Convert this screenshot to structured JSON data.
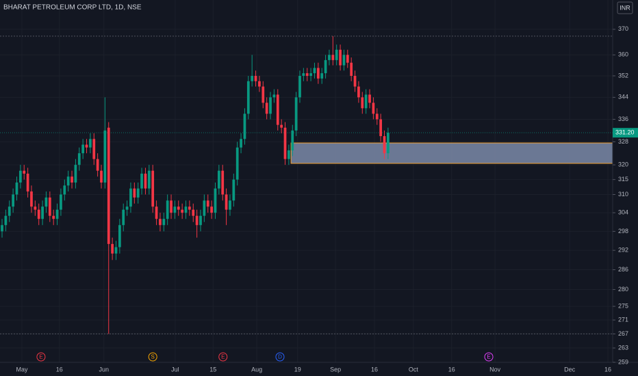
{
  "chart_data": {
    "type": "candlestick",
    "title": "BHARAT PETROLEUM CORP LTD, 1D, NSE",
    "currency": "INR",
    "log_scale": true,
    "grid": true,
    "ylim": [
      257.1,
      381.8
    ],
    "yticks": [
      370,
      360,
      352,
      344,
      336,
      328,
      320,
      315,
      310,
      304,
      298,
      292,
      286,
      280,
      275,
      271,
      267,
      263,
      259
    ],
    "xlim": [
      -0.56,
      166.1
    ],
    "xticks": [
      {
        "value": 5.4,
        "label": "May"
      },
      {
        "value": 15.6,
        "label": "16"
      },
      {
        "value": 27.7,
        "label": "Jun"
      },
      {
        "value": 47.1,
        "label": "Jul"
      },
      {
        "value": 57.4,
        "label": "15"
      },
      {
        "value": 69.3,
        "label": "Aug"
      },
      {
        "value": 80.4,
        "label": "19"
      },
      {
        "value": 90.7,
        "label": "Sep"
      },
      {
        "value": 101.3,
        "label": "16"
      },
      {
        "value": 111.9,
        "label": "Oct"
      },
      {
        "value": 122.3,
        "label": "16"
      },
      {
        "value": 134.1,
        "label": "Nov"
      },
      {
        "value": 154.4,
        "label": "Dec"
      },
      {
        "value": 164.8,
        "label": "16"
      }
    ],
    "up_color": "#089981",
    "down_color": "#f23645",
    "series": [
      {
        "open": [
          298,
          300,
          303,
          306,
          310,
          314,
          318,
          317,
          311,
          306,
          305,
          302,
          306,
          309,
          303,
          302,
          305,
          310,
          313,
          316,
          314,
          320,
          324,
          327,
          326,
          329,
          322,
          318,
          314,
          333,
          294,
          291,
          293,
          300,
          305,
          306,
          312,
          309,
          312,
          317,
          312,
          318,
          306,
          302,
          300,
          302,
          308,
          304,
          306,
          305,
          304,
          306,
          305,
          303,
          300,
          303,
          308,
          306,
          304,
          312,
          318,
          310,
          305,
          308,
          315,
          326,
          329,
          338,
          350,
          352,
          350,
          348,
          342,
          338,
          344,
          345,
          334,
          333,
          322,
          325,
          332,
          344,
          352,
          353,
          352,
          353,
          355,
          351,
          353,
          358,
          360,
          358,
          362,
          356,
          360,
          357,
          352,
          348,
          344,
          340,
          345,
          342,
          338,
          336,
          330,
          324
        ],
        "high": [
          302,
          305,
          308,
          312,
          316,
          320,
          320,
          319,
          313,
          308,
          307,
          308,
          311,
          311,
          305,
          307,
          312,
          315,
          318,
          318,
          322,
          326,
          329,
          329,
          331,
          331,
          324,
          320,
          344,
          335,
          296,
          295,
          302,
          307,
          308,
          314,
          314,
          314,
          319,
          319,
          320,
          320,
          308,
          304,
          304,
          310,
          310,
          308,
          308,
          307,
          308,
          308,
          307,
          305,
          305,
          310,
          310,
          308,
          314,
          320,
          320,
          312,
          310,
          317,
          328,
          331,
          340,
          352,
          360,
          354,
          352,
          350,
          344,
          346,
          347,
          347,
          336,
          335,
          327,
          334,
          346,
          354,
          355,
          355,
          355,
          357,
          357,
          355,
          360,
          362,
          367.3,
          364,
          364,
          362,
          362,
          359,
          354,
          350,
          346,
          347,
          347,
          344,
          340,
          338,
          332,
          333
        ],
        "low": [
          296,
          298,
          301,
          304,
          308,
          312,
          315,
          309,
          304,
          303,
          300,
          300,
          304,
          301,
          300,
          300,
          303,
          308,
          311,
          312,
          312,
          318,
          322,
          324,
          324,
          320,
          316,
          312,
          312,
          267,
          289,
          289,
          291,
          298,
          303,
          304,
          307,
          307,
          310,
          310,
          310,
          304,
          300,
          298,
          298,
          300,
          302,
          302,
          303,
          302,
          302,
          303,
          301,
          296,
          298,
          301,
          304,
          302,
          302,
          310,
          308,
          300,
          303,
          306,
          313,
          324,
          327,
          336,
          348,
          348,
          346,
          340,
          336,
          336,
          342,
          332,
          331,
          320,
          320,
          323,
          330,
          342,
          350,
          350,
          350,
          351,
          349,
          349,
          351,
          356,
          356,
          356,
          354,
          354,
          355,
          350,
          346,
          342,
          338,
          338,
          340,
          336,
          334,
          328,
          322,
          322
        ],
        "close": [
          300,
          303,
          306,
          310,
          314,
          318,
          317,
          311,
          306,
          305,
          302,
          306,
          309,
          303,
          302,
          305,
          310,
          313,
          316,
          314,
          320,
          324,
          327,
          326,
          329,
          322,
          318,
          314,
          332,
          294,
          291,
          293,
          300,
          305,
          306,
          312,
          309,
          312,
          317,
          312,
          318,
          306,
          302,
          300,
          302,
          308,
          304,
          306,
          305,
          304,
          306,
          305,
          303,
          300,
          303,
          308,
          306,
          304,
          312,
          318,
          310,
          305,
          308,
          315,
          326,
          329,
          338,
          350,
          352,
          350,
          348,
          342,
          338,
          344,
          345,
          334,
          333,
          322,
          325,
          332,
          344,
          352,
          353,
          352,
          353,
          355,
          351,
          353,
          358,
          360,
          358,
          362,
          356,
          360,
          357,
          352,
          348,
          344,
          340,
          345,
          342,
          338,
          336,
          330,
          324,
          331.2
        ],
        "close_label": "331.20"
      }
    ],
    "zone": {
      "start": 78.6,
      "low": 320.5,
      "high": 327.6,
      "color": "#7b8aa8",
      "border": "#f0a030"
    },
    "events": [
      {
        "label": "E",
        "x": 10.6,
        "color": "#f23645"
      },
      {
        "label": "S",
        "x": 41,
        "color": "#f7a600"
      },
      {
        "label": "E",
        "x": 60.1,
        "color": "#f23645"
      },
      {
        "label": "D",
        "x": 75.6,
        "color": "#2962ff"
      },
      {
        "label": "E",
        "x": 132.4,
        "color": "#e040fb"
      }
    ]
  }
}
